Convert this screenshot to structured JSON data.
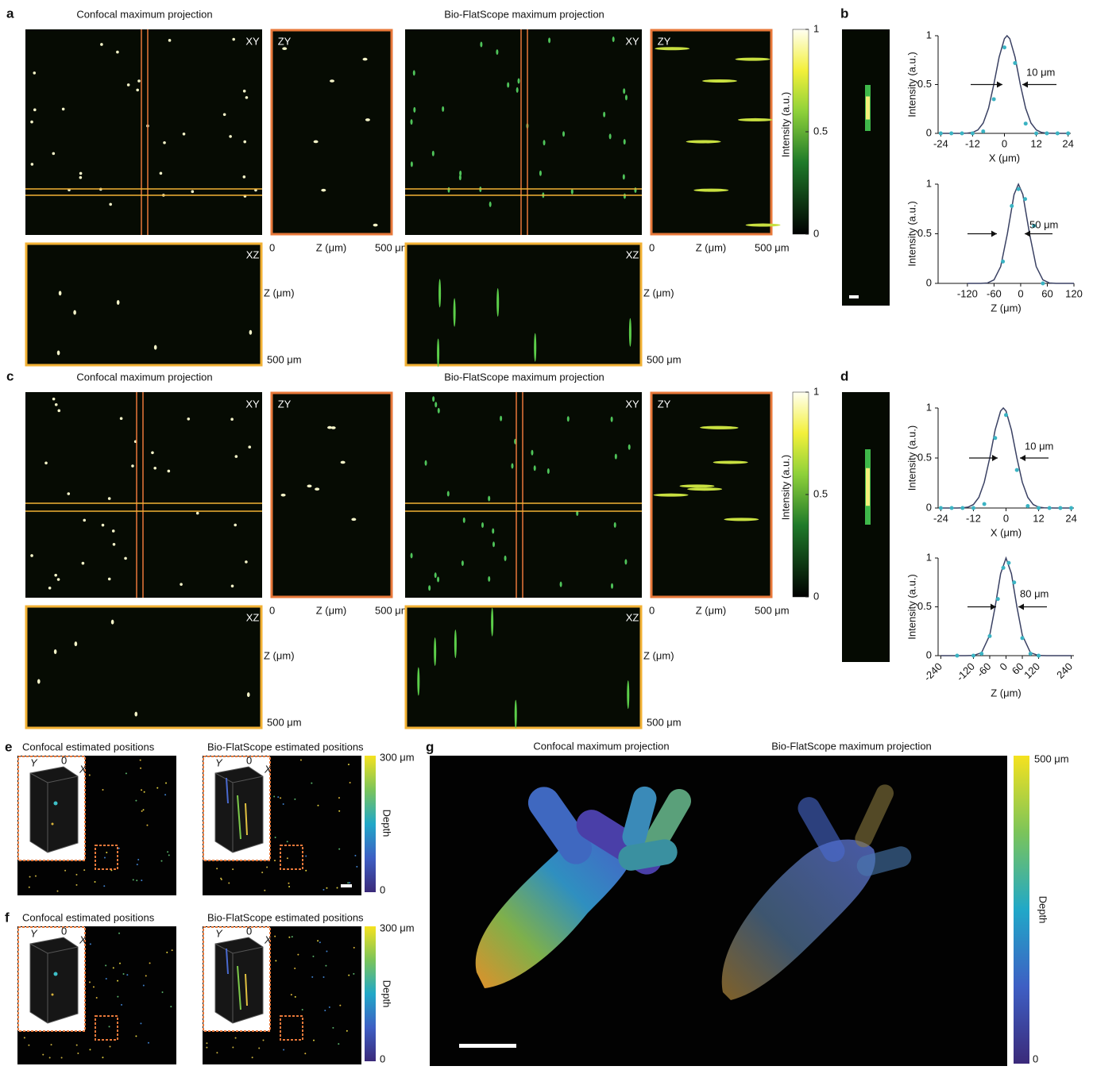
{
  "a": {
    "label": "a",
    "confocal_title": "Confocal maximum projection",
    "flatscope_title": "Bio-FlatScope maximum projection",
    "views": [
      "XY",
      "ZY",
      "XZ"
    ],
    "zy_axis": {
      "start": "0",
      "label": "Z (μm)",
      "end": "500 μm"
    },
    "xz_axis": {
      "label": "Z (μm)",
      "end": "500 μm"
    }
  },
  "c": {
    "label": "c",
    "confocal_title": "Confocal maximum projection",
    "flatscope_title": "Bio-FlatScope maximum projection",
    "views": [
      "XY",
      "ZY",
      "XZ"
    ],
    "zy_axis": {
      "start": "0",
      "label": "Z (μm)",
      "end": "500 μm"
    },
    "xz_axis": {
      "label": "Z (μm)",
      "end": "500 μm"
    }
  },
  "intensity_colorbar": {
    "label": "Intensity (a.u.)",
    "lim": [
      0,
      1
    ],
    "ticks": [
      0,
      0.5,
      1
    ]
  },
  "b": {
    "label": "b"
  },
  "d": {
    "label": "d"
  },
  "e": {
    "label": "e",
    "confocal_title": "Confocal estimated positions",
    "flatscope_title": "Bio-FlatScope estimated positions",
    "inset_axes": [
      "Y",
      "0",
      "X"
    ],
    "colorbar": {
      "top": "300 μm",
      "bottom": "0",
      "label": "Depth"
    }
  },
  "f": {
    "label": "f",
    "confocal_title": "Confocal estimated positions",
    "flatscope_title": "Bio-FlatScope estimated positions",
    "inset_axes": [
      "Y",
      "0",
      "X"
    ],
    "colorbar": {
      "top": "300 μm",
      "bottom": "0",
      "label": "Depth"
    }
  },
  "g": {
    "label": "g",
    "confocal_title": "Confocal maximum projection",
    "flatscope_title": "Bio-FlatScope maximum projection",
    "colorbar": {
      "top": "500 μm",
      "bottom": "0",
      "label": "Depth"
    }
  },
  "chart_data": [
    {
      "type": "line",
      "x_label": "X (μm)",
      "y_label": "Intensity (a.u.)",
      "annotation": "10 μm",
      "xlim": [
        -25,
        25
      ],
      "xticks": [
        -24,
        -12,
        0,
        12,
        24
      ],
      "ylim": [
        0,
        1
      ],
      "yticks": [
        0,
        0.5,
        1
      ],
      "series": [
        {
          "color": "#3a4163",
          "x": [
            -24,
            -20,
            -16,
            -14,
            -12,
            -10,
            -8,
            -6,
            -4,
            -2,
            0,
            1,
            2,
            4,
            6,
            8,
            10,
            12,
            14,
            16,
            20,
            24
          ],
          "values": [
            0,
            0,
            0,
            0.002,
            0.009,
            0.035,
            0.106,
            0.257,
            0.5,
            0.78,
            0.97,
            1,
            0.97,
            0.78,
            0.5,
            0.257,
            0.106,
            0.035,
            0.009,
            0.002,
            0,
            0
          ]
        },
        {
          "color": "#3bb3c3",
          "markers": true,
          "x": [
            -24,
            -20,
            -16,
            -12,
            -8,
            -4,
            0,
            4,
            8,
            12,
            16,
            20,
            24
          ],
          "values": [
            0,
            0,
            0,
            0,
            0.02,
            0.35,
            0.88,
            0.72,
            0.1,
            0,
            0,
            0,
            0
          ]
        }
      ]
    },
    {
      "type": "line",
      "x_label": "Z (μm)",
      "y_label": "Intensity (a.u.)",
      "annotation": "50 μm",
      "xlim": [
        -186,
        120
      ],
      "xticks": [
        -120,
        -60,
        0,
        60,
        120
      ],
      "ylim": [
        0,
        1
      ],
      "yticks": [
        0,
        0.5,
        1
      ],
      "series": [
        {
          "color": "#3a4163",
          "x": [
            -120,
            -90,
            -75,
            -60,
            -45,
            -30,
            -15,
            -5,
            5,
            20,
            35,
            50,
            65,
            80,
            120
          ],
          "values": [
            0,
            0,
            0.004,
            0.035,
            0.17,
            0.5,
            0.895,
            1,
            0.895,
            0.5,
            0.17,
            0.035,
            0.004,
            0,
            0
          ]
        },
        {
          "color": "#3bb3c3",
          "markers": true,
          "x": [
            -40,
            -20,
            -5,
            10,
            30,
            50
          ],
          "values": [
            0.22,
            0.78,
            0.95,
            0.85,
            0.58,
            0
          ]
        }
      ]
    },
    {
      "type": "line",
      "x_label": "X (μm)",
      "y_label": "Intensity (a.u.)",
      "annotation": "10 μm",
      "xlim": [
        -25,
        25
      ],
      "xticks": [
        -24,
        -12,
        0,
        12,
        24
      ],
      "ylim": [
        0,
        1
      ],
      "yticks": [
        0,
        0.5,
        1
      ],
      "series": [
        {
          "color": "#3a4163",
          "x": [
            -24,
            -18,
            -16,
            -14,
            -12,
            -10,
            -8,
            -6,
            -4,
            -2,
            -1,
            0,
            2,
            4,
            6,
            8,
            10,
            12,
            14,
            18,
            24
          ],
          "values": [
            0,
            0,
            0.002,
            0.009,
            0.035,
            0.106,
            0.257,
            0.5,
            0.78,
            0.97,
            1,
            0.97,
            0.78,
            0.5,
            0.257,
            0.106,
            0.035,
            0.009,
            0.002,
            0,
            0
          ]
        },
        {
          "color": "#3bb3c3",
          "markers": true,
          "x": [
            -24,
            -20,
            -16,
            -12,
            -8,
            -4,
            0,
            4,
            8,
            12,
            16,
            20,
            24
          ],
          "values": [
            0,
            0,
            0,
            0,
            0.04,
            0.7,
            0.93,
            0.38,
            0.02,
            0,
            0,
            0,
            0
          ]
        }
      ]
    },
    {
      "type": "line",
      "x_label": "Z (μm)",
      "y_label": "Intensity (a.u.)",
      "annotation": "80 μm",
      "rotate_xticks": true,
      "xlim": [
        -250,
        250
      ],
      "xticks": [
        -240,
        -120,
        -60,
        0,
        60,
        120,
        240
      ],
      "ylim": [
        0,
        1
      ],
      "yticks": [
        0,
        0.5,
        1
      ],
      "series": [
        {
          "color": "#3a4163",
          "x": [
            -240,
            -150,
            -120,
            -90,
            -60,
            -40,
            -20,
            0,
            20,
            40,
            60,
            90,
            120,
            150,
            240
          ],
          "values": [
            0,
            0,
            0.002,
            0.03,
            0.21,
            0.5,
            0.84,
            1,
            0.84,
            0.5,
            0.21,
            0.03,
            0.002,
            0,
            0
          ]
        },
        {
          "color": "#3bb3c3",
          "markers": true,
          "x": [
            -180,
            -120,
            -90,
            -60,
            -30,
            -10,
            10,
            30,
            60,
            90,
            120
          ],
          "values": [
            0,
            0,
            0.02,
            0.2,
            0.58,
            0.9,
            0.95,
            0.75,
            0.18,
            0.02,
            0
          ]
        }
      ]
    }
  ]
}
